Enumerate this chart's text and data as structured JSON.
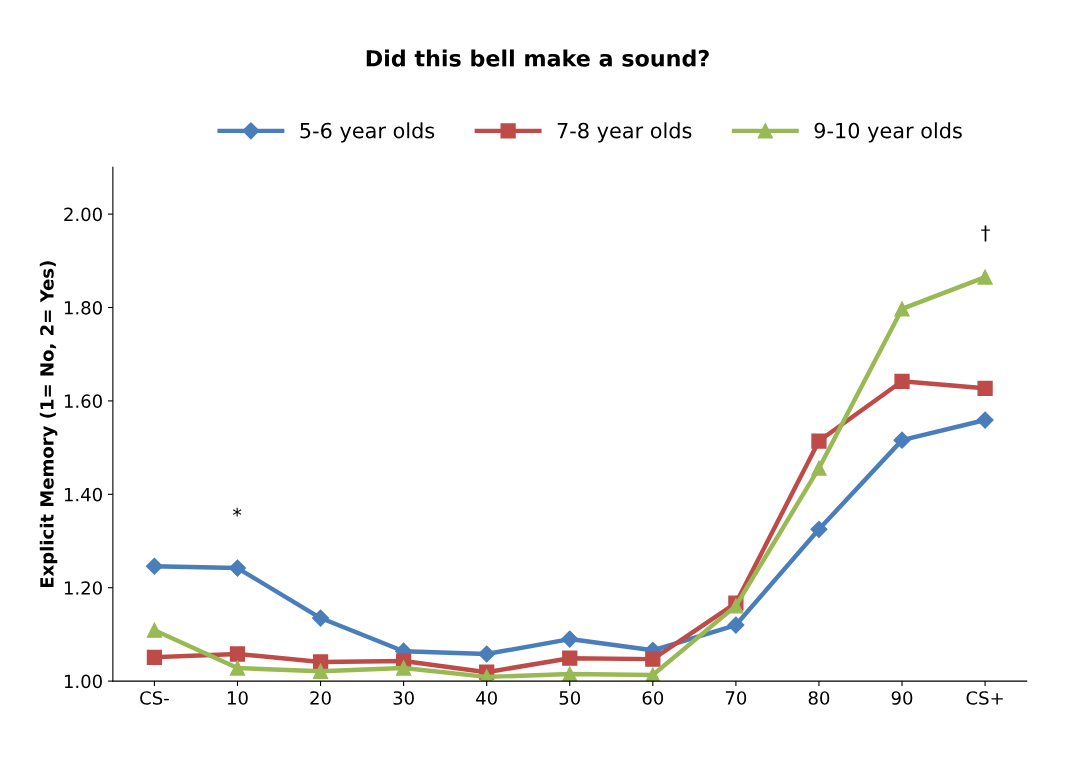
{
  "chart_data": {
    "type": "line",
    "title": "Did this bell make a sound?",
    "ylabel": "Explicit Memory (1= No, 2= Yes)",
    "categories": [
      "CS-",
      "10",
      "20",
      "30",
      "40",
      "50",
      "60",
      "70",
      "80",
      "90",
      "CS+"
    ],
    "series": [
      {
        "name": "5-6 year olds",
        "color": "#4a7ebb",
        "marker": "diamond",
        "values": [
          1.246,
          1.242,
          1.135,
          1.064,
          1.058,
          1.09,
          1.066,
          1.12,
          1.325,
          1.516,
          1.559
        ]
      },
      {
        "name": "7-8 year olds",
        "color": "#be4b48",
        "marker": "square",
        "values": [
          1.051,
          1.058,
          1.041,
          1.043,
          1.019,
          1.049,
          1.047,
          1.167,
          1.514,
          1.642,
          1.627
        ]
      },
      {
        "name": "9-10 year olds",
        "color": "#98b954",
        "marker": "triangle",
        "values": [
          1.109,
          1.028,
          1.021,
          1.028,
          1.009,
          1.015,
          1.013,
          1.161,
          1.456,
          1.797,
          1.865
        ]
      }
    ],
    "ylim": [
      1.0,
      2.1
    ],
    "yticks": [
      {
        "value": 1.0,
        "label": "1.00"
      },
      {
        "value": 1.2,
        "label": "1.20"
      },
      {
        "value": 1.4,
        "label": "1.40"
      },
      {
        "value": 1.6,
        "label": "1.60"
      },
      {
        "value": 1.8,
        "label": "1.80"
      },
      {
        "value": 2.0,
        "label": "2.00"
      }
    ],
    "grid": false,
    "legend": "top",
    "annotations": [
      "*",
      "†"
    ]
  }
}
